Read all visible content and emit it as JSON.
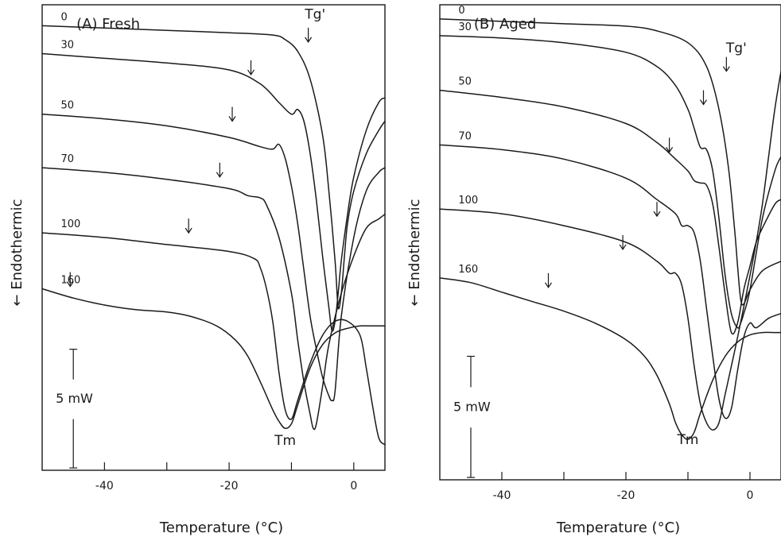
{
  "chart_data": [
    {
      "type": "line",
      "title": "(A) Fresh",
      "xlabel": "Temperature (°C)",
      "ylabel": "← Endothermic",
      "xlim": [
        -50,
        5
      ],
      "ylim": [
        0,
        10
      ],
      "x_ticks": [
        -40,
        -30,
        -20,
        -10,
        0
      ],
      "x_tick_labels": [
        "-40",
        "",
        "-20",
        "",
        "0"
      ],
      "scale_bar_label": "5 mW",
      "scale_bar_mw": 5,
      "annotations": [
        {
          "text": "Tg'",
          "x": -6.2,
          "y": 9.7
        },
        {
          "text": "Tm",
          "x": -11,
          "y": 0.55
        }
      ],
      "grid": false,
      "legend": "none",
      "series": [
        {
          "label": "0",
          "label_x": -47,
          "arrow": {
            "x": -7.3,
            "y": 9.2
          },
          "x": [
            -50,
            -40,
            -30,
            -20,
            -13,
            -11,
            -9,
            -7,
            -5,
            -4,
            -3,
            -2.5,
            -2,
            -1.5,
            -1,
            0,
            2,
            4,
            5
          ],
          "y": [
            9.55,
            9.5,
            9.45,
            9.4,
            9.35,
            9.25,
            9.0,
            8.4,
            7.2,
            6.0,
            4.5,
            3.5,
            3.8,
            4.6,
            5.3,
            6.0,
            6.8,
            7.3,
            7.5
          ]
        },
        {
          "label": "30",
          "label_x": -47,
          "arrow": {
            "x": -16.5,
            "y": 8.5
          },
          "x": [
            -50,
            -40,
            -30,
            -20,
            -15,
            -12,
            -10,
            -9,
            -8,
            -7,
            -6,
            -5,
            -4,
            -3.5,
            -3,
            -2.5,
            -2,
            -1,
            0,
            2,
            4,
            5
          ],
          "y": [
            8.95,
            8.85,
            8.75,
            8.6,
            8.3,
            7.9,
            7.65,
            7.75,
            7.5,
            6.8,
            5.8,
            4.6,
            3.5,
            3.0,
            3.2,
            3.8,
            4.5,
            5.5,
            6.3,
            7.3,
            7.9,
            8.0
          ]
        },
        {
          "label": "50",
          "label_x": -47,
          "arrow": {
            "x": -19.5,
            "y": 7.5
          },
          "x": [
            -50,
            -40,
            -30,
            -20,
            -15,
            -13,
            -12,
            -11,
            -10,
            -9,
            -8,
            -7,
            -6,
            -5,
            -4,
            -3.5,
            -3,
            -2,
            0,
            2,
            4,
            5
          ],
          "y": [
            7.65,
            7.55,
            7.4,
            7.15,
            6.95,
            6.9,
            7.0,
            6.7,
            6.1,
            5.3,
            4.3,
            3.3,
            2.6,
            2.0,
            1.6,
            1.5,
            1.7,
            3.3,
            5.0,
            6.0,
            6.4,
            6.5
          ]
        },
        {
          "label": "70",
          "label_x": -47,
          "arrow": {
            "x": -21.5,
            "y": 6.3
          },
          "x": [
            -50,
            -40,
            -30,
            -20,
            -17,
            -15,
            -14,
            -12,
            -10,
            -9,
            -8,
            -7,
            -6.5,
            -6,
            -5,
            -4,
            -2,
            0,
            2,
            4,
            5
          ],
          "y": [
            6.5,
            6.4,
            6.25,
            6.05,
            5.9,
            5.85,
            5.7,
            5.0,
            3.8,
            2.8,
            1.9,
            1.2,
            0.9,
            1.0,
            1.8,
            2.7,
            3.8,
            4.6,
            5.2,
            5.4,
            5.5
          ]
        },
        {
          "label": "100",
          "label_x": -47,
          "arrow": {
            "x": -26.5,
            "y": 5.1
          },
          "x": [
            -50,
            -40,
            -30,
            -20,
            -16,
            -15,
            -14,
            -13,
            -12,
            -11,
            -10,
            -9,
            -7,
            -5,
            -3,
            -1,
            1,
            2,
            3,
            4,
            5
          ],
          "y": [
            5.1,
            5.0,
            4.85,
            4.7,
            4.55,
            4.35,
            3.9,
            3.2,
            2.1,
            1.3,
            1.1,
            1.5,
            2.3,
            2.9,
            3.2,
            3.2,
            2.9,
            2.2,
            1.4,
            0.7,
            0.55
          ]
        },
        {
          "label": "160",
          "label_x": -47,
          "arrow": {
            "x": -45.5,
            "y": 3.95
          },
          "x": [
            -50,
            -45,
            -40,
            -35,
            -30,
            -26,
            -22,
            -19,
            -17,
            -15,
            -13,
            -12,
            -11,
            -10,
            -9,
            -7,
            -5,
            -3,
            -1,
            1,
            3,
            5
          ],
          "y": [
            3.9,
            3.7,
            3.55,
            3.45,
            3.4,
            3.3,
            3.1,
            2.8,
            2.45,
            1.9,
            1.3,
            1.05,
            0.9,
            1.0,
            1.4,
            2.2,
            2.7,
            2.95,
            3.05,
            3.1,
            3.1,
            3.1
          ]
        }
      ]
    },
    {
      "type": "line",
      "title": "(B) Aged",
      "xlabel": "Temperature (°C)",
      "ylabel": "← Endothermic",
      "xlim": [
        -50,
        5
      ],
      "ylim": [
        0,
        10
      ],
      "x_ticks": [
        -40,
        -30,
        -20,
        -10,
        0
      ],
      "x_tick_labels": [
        "-40",
        "",
        "-20",
        "",
        "0"
      ],
      "scale_bar_label": "5 mW",
      "scale_bar_mw": 5,
      "annotations": [
        {
          "text": "Tg'",
          "x": -2.2,
          "y": 9.0
        },
        {
          "text": "Tm",
          "x": -10,
          "y": 0.75
        }
      ],
      "grid": false,
      "legend": "none",
      "series": [
        {
          "label": "0",
          "label_x": -47,
          "arrow": {
            "x": -3.8,
            "y": 8.6
          },
          "x": [
            -50,
            -40,
            -30,
            -20,
            -15,
            -10,
            -7,
            -5,
            -3.5,
            -2.5,
            -2,
            -1.5,
            -1,
            0,
            2,
            5
          ],
          "y": [
            9.7,
            9.65,
            9.6,
            9.55,
            9.45,
            9.2,
            8.7,
            7.8,
            6.6,
            5.3,
            4.5,
            3.8,
            3.7,
            4.0,
            4.4,
            4.6
          ]
        },
        {
          "label": "30",
          "label_x": -47,
          "arrow": {
            "x": -7.5,
            "y": 7.9
          },
          "x": [
            -50,
            -40,
            -30,
            -20,
            -15,
            -12,
            -10,
            -9,
            -8,
            -7,
            -6,
            -5,
            -4,
            -3,
            -2,
            -1.5,
            -1,
            0,
            2,
            4,
            5
          ],
          "y": [
            9.35,
            9.3,
            9.2,
            9.0,
            8.7,
            8.3,
            7.8,
            7.4,
            7.0,
            6.95,
            6.5,
            5.5,
            4.3,
            3.5,
            3.2,
            3.3,
            3.5,
            4.0,
            5.5,
            6.5,
            6.8
          ]
        },
        {
          "label": "50",
          "label_x": -47,
          "arrow": {
            "x": -13,
            "y": 6.9
          },
          "x": [
            -50,
            -40,
            -30,
            -20,
            -15,
            -12,
            -10,
            -9,
            -8,
            -7,
            -6,
            -5,
            -4,
            -3,
            -2,
            -1,
            0,
            1,
            2,
            4,
            5
          ],
          "y": [
            8.2,
            8.05,
            7.85,
            7.5,
            7.1,
            6.75,
            6.5,
            6.3,
            6.25,
            6.2,
            5.8,
            4.9,
            3.9,
            3.1,
            3.3,
            4.0,
            4.5,
            5.0,
            5.3,
            5.8,
            5.9
          ]
        },
        {
          "label": "70",
          "label_x": -47,
          "arrow": {
            "x": -15,
            "y": 5.55
          },
          "x": [
            -50,
            -40,
            -30,
            -20,
            -15,
            -12,
            -11,
            -10,
            -9,
            -8,
            -7,
            -6,
            -5,
            -4,
            -3,
            -2,
            -1,
            0,
            1,
            3,
            5
          ],
          "y": [
            7.05,
            6.95,
            6.75,
            6.35,
            5.9,
            5.6,
            5.35,
            5.35,
            5.2,
            4.6,
            3.6,
            2.6,
            1.7,
            1.3,
            1.5,
            2.3,
            3.0,
            3.3,
            3.2,
            3.4,
            3.5
          ]
        },
        {
          "label": "100",
          "label_x": -47,
          "arrow": {
            "x": -20.5,
            "y": 4.85
          },
          "x": [
            -50,
            -40,
            -30,
            -20,
            -15,
            -13,
            -12,
            -11,
            -10,
            -9,
            -8,
            -7,
            -6,
            -5,
            -4,
            -2,
            0,
            1,
            2,
            3,
            4,
            5
          ],
          "y": [
            5.7,
            5.6,
            5.35,
            5.0,
            4.6,
            4.35,
            4.35,
            4.1,
            3.4,
            2.4,
            1.6,
            1.2,
            1.05,
            1.2,
            1.8,
            3.0,
            4.3,
            5.0,
            5.8,
            6.8,
            7.8,
            8.6
          ]
        },
        {
          "label": "160",
          "label_x": -47,
          "arrow": {
            "x": -32.5,
            "y": 4.05
          },
          "x": [
            -50,
            -45,
            -40,
            -35,
            -30,
            -25,
            -20,
            -17,
            -15,
            -13,
            -12,
            -11,
            -10,
            -9,
            -8,
            -6,
            -4,
            -2,
            0,
            2,
            4,
            5
          ],
          "y": [
            4.25,
            4.15,
            3.95,
            3.75,
            3.55,
            3.3,
            2.95,
            2.6,
            2.2,
            1.6,
            1.2,
            0.95,
            0.85,
            1.0,
            1.4,
            2.1,
            2.6,
            2.9,
            3.05,
            3.1,
            3.1,
            3.1
          ]
        }
      ]
    }
  ]
}
